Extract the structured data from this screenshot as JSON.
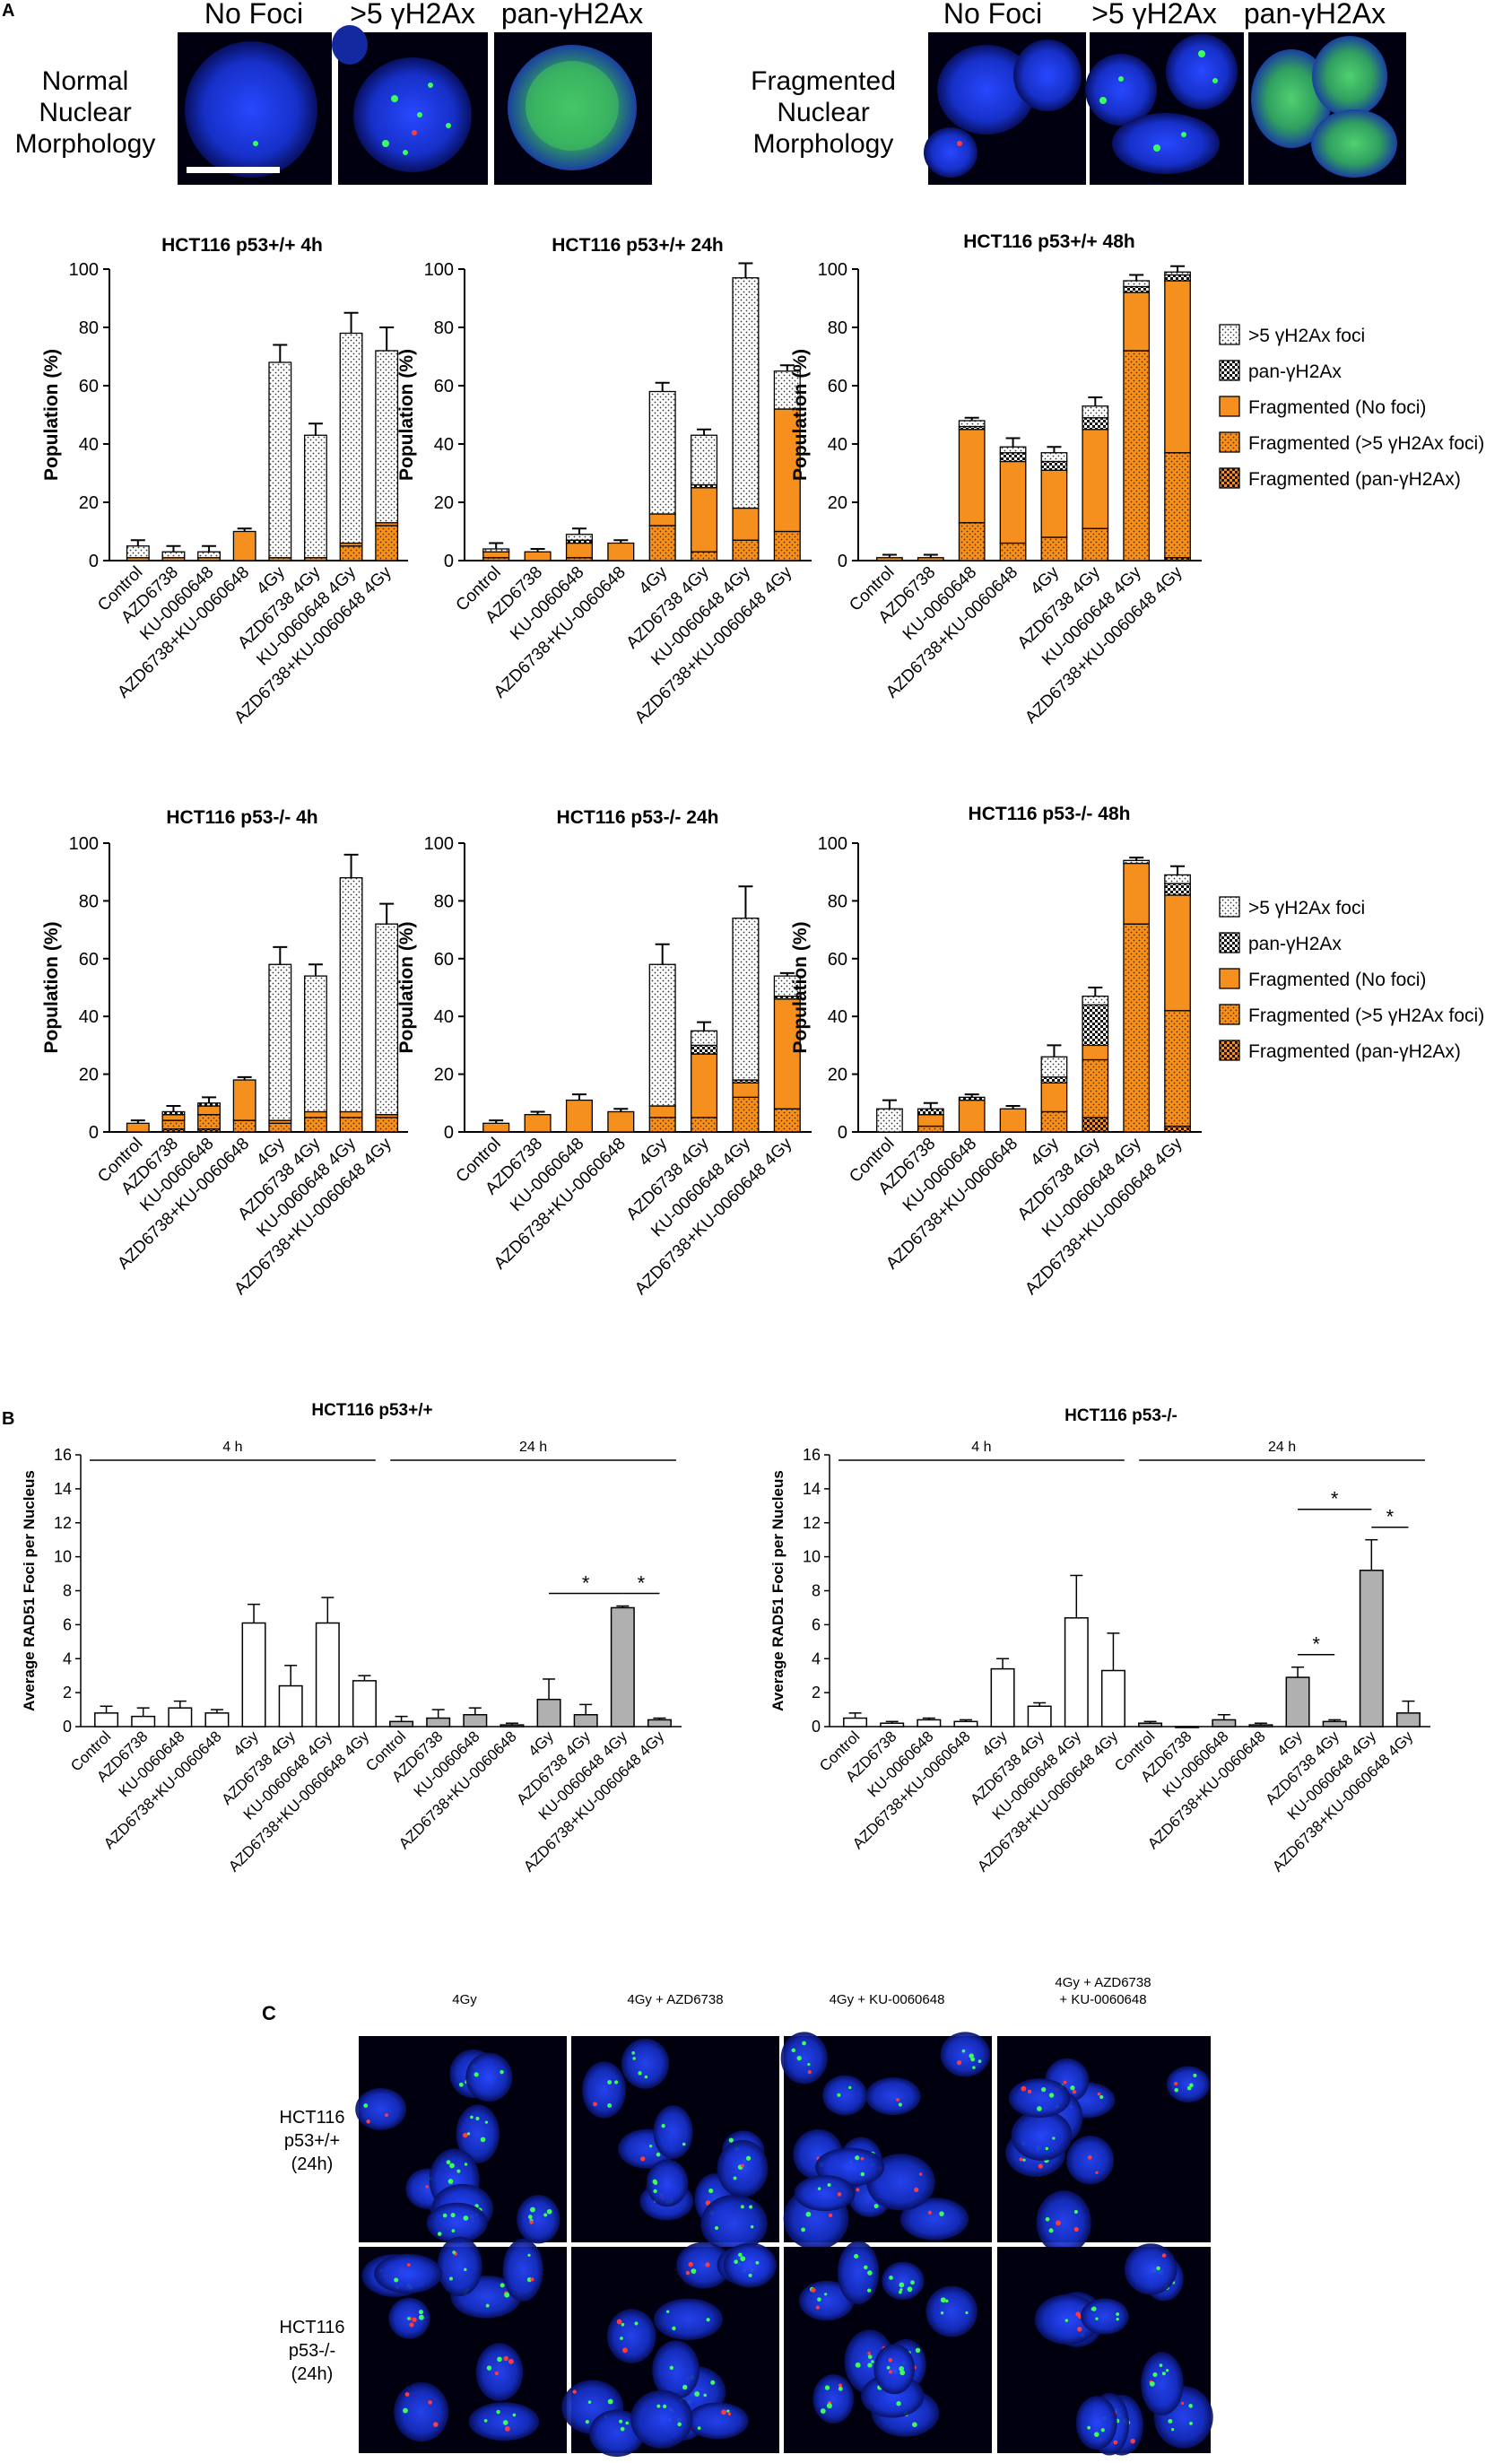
{
  "figure": {
    "panel_labels": [
      "A",
      "B",
      "C"
    ]
  },
  "panel_a_images": {
    "groups": [
      {
        "row_label": [
          "Normal",
          "Nuclear",
          "Morphology"
        ],
        "headers": [
          "No Foci",
          ">5 γH2Ax",
          "pan-γH2Ax"
        ]
      },
      {
        "row_label": [
          "Fragmented",
          "Nuclear",
          "Morphology"
        ],
        "headers": [
          "No Foci",
          ">5 γH2Ax",
          "pan-γH2Ax"
        ]
      }
    ]
  },
  "colors": {
    "orange": "#f5901e",
    "white": "#ffffff",
    "gray": "#b0b0b0",
    "nucleus_blue": "#1838d8",
    "foci_green": "#3aff5a",
    "foci_red": "#ff3b3b",
    "image_bg": "#000010"
  },
  "legend_entries": [
    ">5 γH2Ax foci",
    "pan-γH2Ax",
    "Fragmented (No foci)",
    "Fragmented (>5 γH2Ax foci)",
    "Fragmented (pan-γH2Ax)"
  ],
  "chart_data": [
    {
      "type": "stacked-bar",
      "title": "HCT116 p53+/+ 4h",
      "ylabel": "Population (%)",
      "ylim": [
        0,
        100
      ],
      "yticks": [
        0,
        20,
        40,
        60,
        80,
        100
      ],
      "categories": [
        "Control",
        "AZD6738",
        "KU-0060648",
        "AZD6738+KU-0060648",
        "4Gy",
        "AZD6738 4Gy",
        "KU-0060648 4Gy",
        "AZD6738+KU-0060648 4Gy"
      ],
      "series": [
        {
          "name": "Fragmented (pan-γH2Ax)",
          "values": [
            0,
            0,
            0,
            0,
            0,
            0,
            0,
            0
          ]
        },
        {
          "name": "Fragmented (>5 γH2Ax foci)",
          "values": [
            0,
            0,
            0,
            0,
            1,
            1,
            5,
            12
          ]
        },
        {
          "name": "Fragmented (No foci)",
          "values": [
            1,
            1,
            1,
            10,
            0,
            0,
            1,
            1
          ]
        },
        {
          "name": "pan-γH2Ax",
          "values": [
            0,
            0,
            0,
            0,
            0,
            0,
            0,
            0
          ]
        },
        {
          "name": ">5 γH2Ax foci",
          "values": [
            4,
            2,
            2,
            0,
            67,
            42,
            72,
            59
          ]
        }
      ],
      "error": [
        2,
        2,
        2,
        1,
        6,
        4,
        7,
        8
      ]
    },
    {
      "type": "stacked-bar",
      "title": "HCT116 p53+/+ 24h",
      "ylabel": "Population (%)",
      "ylim": [
        0,
        100
      ],
      "yticks": [
        0,
        20,
        40,
        60,
        80,
        100
      ],
      "categories": [
        "Control",
        "AZD6738",
        "KU-0060648",
        "AZD6738+KU-0060648",
        "4Gy",
        "AZD6738 4Gy",
        "KU-0060648 4Gy",
        "AZD6738+KU-0060648 4Gy"
      ],
      "series": [
        {
          "name": "Fragmented (pan-γH2Ax)",
          "values": [
            0,
            0,
            0,
            0,
            0,
            0,
            0,
            0
          ]
        },
        {
          "name": "Fragmented (>5 γH2Ax foci)",
          "values": [
            1,
            0,
            1,
            0,
            12,
            3,
            7,
            10
          ]
        },
        {
          "name": "Fragmented (No foci)",
          "values": [
            2,
            3,
            5,
            6,
            4,
            22,
            11,
            42
          ]
        },
        {
          "name": "pan-γH2Ax",
          "values": [
            0,
            0,
            1,
            0,
            0,
            1,
            0,
            0
          ]
        },
        {
          "name": ">5 γH2Ax foci",
          "values": [
            1,
            0,
            2,
            0,
            42,
            17,
            79,
            13
          ]
        }
      ],
      "error": [
        2,
        1,
        2,
        1,
        3,
        2,
        5,
        2
      ]
    },
    {
      "type": "stacked-bar",
      "title": "HCT116 p53+/+ 48h",
      "ylabel": "Population (%)",
      "ylim": [
        0,
        100
      ],
      "yticks": [
        0,
        20,
        40,
        60,
        80,
        100
      ],
      "categories": [
        "Control",
        "AZD6738",
        "KU-0060648",
        "AZD6738+KU-0060648",
        "4Gy",
        "AZD6738 4Gy",
        "KU-0060648 4Gy",
        "AZD6738+KU-0060648 4Gy"
      ],
      "series": [
        {
          "name": "Fragmented (pan-γH2Ax)",
          "values": [
            0,
            0,
            0,
            0,
            0,
            0,
            0,
            1
          ]
        },
        {
          "name": "Fragmented (>5 γH2Ax foci)",
          "values": [
            0,
            0,
            13,
            6,
            8,
            11,
            72,
            36
          ]
        },
        {
          "name": "Fragmented (No foci)",
          "values": [
            1,
            1,
            32,
            28,
            23,
            34,
            20,
            59
          ]
        },
        {
          "name": "pan-γH2Ax",
          "values": [
            0,
            0,
            1,
            3,
            3,
            4,
            2,
            2
          ]
        },
        {
          "name": ">5 γH2Ax foci",
          "values": [
            0,
            0,
            2,
            2,
            3,
            4,
            2,
            1
          ]
        }
      ],
      "error": [
        1,
        1,
        1,
        3,
        2,
        3,
        2,
        2
      ]
    },
    {
      "type": "stacked-bar",
      "title": "HCT116 p53-/- 4h",
      "ylabel": "Population (%)",
      "ylim": [
        0,
        100
      ],
      "yticks": [
        0,
        20,
        40,
        60,
        80,
        100
      ],
      "categories": [
        "Control",
        "AZD6738",
        "KU-0060648",
        "AZD6738+KU-0060648",
        "4Gy",
        "AZD6738 4Gy",
        "KU-0060648 4Gy",
        "AZD6738+KU-0060648 4Gy"
      ],
      "series": [
        {
          "name": "Fragmented (pan-γH2Ax)",
          "values": [
            0,
            1,
            1,
            0,
            0,
            0,
            0,
            0
          ]
        },
        {
          "name": "Fragmented (>5 γH2Ax foci)",
          "values": [
            0,
            3,
            5,
            4,
            3,
            5,
            5,
            5
          ]
        },
        {
          "name": "Fragmented (No foci)",
          "values": [
            3,
            2,
            3,
            14,
            1,
            2,
            2,
            1
          ]
        },
        {
          "name": "pan-γH2Ax",
          "values": [
            0,
            1,
            1,
            0,
            0,
            0,
            0,
            0
          ]
        },
        {
          "name": ">5 γH2Ax foci",
          "values": [
            0,
            0,
            0,
            0,
            54,
            47,
            81,
            66
          ]
        }
      ],
      "error": [
        1,
        2,
        2,
        1,
        6,
        4,
        8,
        7
      ]
    },
    {
      "type": "stacked-bar",
      "title": "HCT116 p53-/- 24h",
      "ylabel": "Population (%)",
      "ylim": [
        0,
        100
      ],
      "yticks": [
        0,
        20,
        40,
        60,
        80,
        100
      ],
      "categories": [
        "Control",
        "AZD6738",
        "KU-0060648",
        "AZD6738+KU-0060648",
        "4Gy",
        "AZD6738 4Gy",
        "KU-0060648 4Gy",
        "AZD6738+KU-0060648 4Gy"
      ],
      "series": [
        {
          "name": "Fragmented (pan-γH2Ax)",
          "values": [
            0,
            0,
            0,
            0,
            0,
            0,
            0,
            0
          ]
        },
        {
          "name": "Fragmented (>5 γH2Ax foci)",
          "values": [
            0,
            0,
            0,
            0,
            5,
            5,
            12,
            8
          ]
        },
        {
          "name": "Fragmented (No foci)",
          "values": [
            3,
            6,
            11,
            7,
            4,
            22,
            5,
            38
          ]
        },
        {
          "name": "pan-γH2Ax",
          "values": [
            0,
            0,
            0,
            0,
            0,
            3,
            1,
            1
          ]
        },
        {
          "name": ">5 γH2Ax foci",
          "values": [
            0,
            0,
            0,
            0,
            49,
            5,
            56,
            7
          ]
        }
      ],
      "error": [
        1,
        1,
        2,
        1,
        7,
        3,
        11,
        1
      ]
    },
    {
      "type": "stacked-bar",
      "title": "HCT116 p53-/- 48h",
      "ylabel": "Population (%)",
      "ylim": [
        0,
        100
      ],
      "yticks": [
        0,
        20,
        40,
        60,
        80,
        100
      ],
      "categories": [
        "Control",
        "AZD6738",
        "KU-0060648",
        "AZD6738+KU-0060648",
        "4Gy",
        "AZD6738 4Gy",
        "KU-0060648 4Gy",
        "AZD6738+KU-0060648 4Gy"
      ],
      "series": [
        {
          "name": "Fragmented (pan-γH2Ax)",
          "values": [
            0,
            0,
            0,
            0,
            0,
            5,
            0,
            2
          ]
        },
        {
          "name": "Fragmented (>5 γH2Ax foci)",
          "values": [
            0,
            2,
            0,
            0,
            7,
            20,
            72,
            40
          ]
        },
        {
          "name": "Fragmented (No foci)",
          "values": [
            0,
            4,
            11,
            8,
            10,
            5,
            21,
            40
          ]
        },
        {
          "name": "pan-γH2Ax",
          "values": [
            0,
            2,
            1,
            0,
            2,
            14,
            0,
            4
          ]
        },
        {
          "name": ">5 γH2Ax foci",
          "values": [
            8,
            0,
            0,
            0,
            7,
            3,
            1,
            3
          ]
        }
      ],
      "error": [
        3,
        2,
        1,
        1,
        4,
        3,
        1,
        3
      ]
    },
    {
      "type": "bar",
      "title": "HCT116 p53+/+",
      "ylabel": "Average RAD51 Foci per Nucleus",
      "ylim": [
        0,
        16
      ],
      "yticks": [
        0,
        2,
        4,
        6,
        8,
        10,
        12,
        14,
        16
      ],
      "group_labels": [
        "4 h",
        "24 h"
      ],
      "categories": [
        "Control",
        "AZD6738",
        "KU-0060648",
        "AZD6738+KU-0060648",
        "4Gy",
        "AZD6738 4Gy",
        "KU-0060648 4Gy",
        "AZD6738+KU-0060648 4Gy",
        "Control",
        "AZD6738",
        "KU-0060648",
        "AZD6738+KU-0060648",
        "4Gy",
        "AZD6738 4Gy",
        "KU-0060648 4Gy",
        "AZD6738+KU-0060648 4Gy"
      ],
      "values": [
        0.8,
        0.6,
        1.1,
        0.8,
        6.1,
        2.4,
        6.1,
        2.7,
        0.3,
        0.5,
        0.7,
        0.1,
        1.6,
        0.7,
        7.0,
        0.4
      ],
      "error": [
        0.4,
        0.5,
        0.4,
        0.2,
        1.1,
        1.2,
        1.5,
        0.3,
        0.3,
        0.5,
        0.4,
        0.1,
        1.2,
        0.6,
        0.1,
        0.1
      ],
      "significance": [
        [
          12,
          14,
          "*"
        ],
        [
          14,
          15,
          "*"
        ]
      ]
    },
    {
      "type": "bar",
      "title": "HCT116 p53-/-",
      "ylabel": "Average RAD51 Foci per Nucleus",
      "ylim": [
        0,
        16
      ],
      "yticks": [
        0,
        2,
        4,
        6,
        8,
        10,
        12,
        14,
        16
      ],
      "group_labels": [
        "4 h",
        "24 h"
      ],
      "categories": [
        "Control",
        "AZD6738",
        "KU-0060648",
        "AZD6738+KU-0060648",
        "4Gy",
        "AZD6738 4Gy",
        "KU-0060648 4Gy",
        "AZD6738+KU-0060648 4Gy",
        "Control",
        "AZD6738",
        "KU-0060648",
        "AZD6738+KU-0060648",
        "4Gy",
        "AZD6738 4Gy",
        "KU-0060648 4Gy",
        "AZD6738+KU-0060648 4Gy"
      ],
      "values": [
        0.5,
        0.2,
        0.4,
        0.3,
        3.4,
        1.2,
        6.4,
        3.3,
        0.2,
        0.0,
        0.4,
        0.1,
        2.9,
        0.3,
        9.2,
        0.8
      ],
      "error": [
        0.3,
        0.1,
        0.1,
        0.1,
        0.6,
        0.2,
        2.5,
        2.2,
        0.1,
        0.0,
        0.3,
        0.1,
        0.6,
        0.1,
        1.8,
        0.7
      ],
      "significance": [
        [
          12,
          13,
          "*"
        ],
        [
          12,
          14,
          "*"
        ],
        [
          14,
          15,
          "*"
        ]
      ]
    }
  ],
  "panel_c": {
    "column_headers": [
      [
        "4Gy"
      ],
      [
        "4Gy + AZD6738"
      ],
      [
        "4Gy + KU-0060648"
      ],
      [
        "4Gy + AZD6738",
        "+ KU-0060648"
      ]
    ],
    "row_labels": [
      [
        "HCT116",
        "p53+/+",
        "(24h)"
      ],
      [
        "HCT116",
        "p53-/-",
        "(24h)"
      ]
    ]
  }
}
